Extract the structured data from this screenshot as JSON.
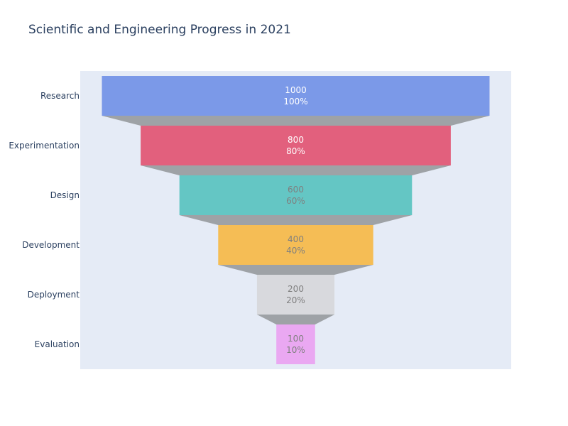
{
  "chart_data": {
    "type": "funnel",
    "title": "Scientific and Engineering Progress in 2021",
    "categories": [
      "Research",
      "Experimentation",
      "Design",
      "Development",
      "Deployment",
      "Evaluation"
    ],
    "values": [
      1000,
      800,
      600,
      400,
      200,
      100
    ],
    "percent_labels": [
      "100%",
      "80%",
      "60%",
      "40%",
      "20%",
      "10%"
    ],
    "colors": [
      "#7b99e8",
      "#e2607d",
      "#64c6c4",
      "#f5bd55",
      "#d8d9dd",
      "#eaa8f2"
    ],
    "label_colors": [
      "#ffffff",
      "#ffffff",
      "#7f7f7f",
      "#7f7f7f",
      "#7f7f7f",
      "#7f7f7f"
    ],
    "connector_color": "#9ea2a6",
    "plot_background": "#e5ebf6",
    "label_color": "#2a3f5f"
  }
}
